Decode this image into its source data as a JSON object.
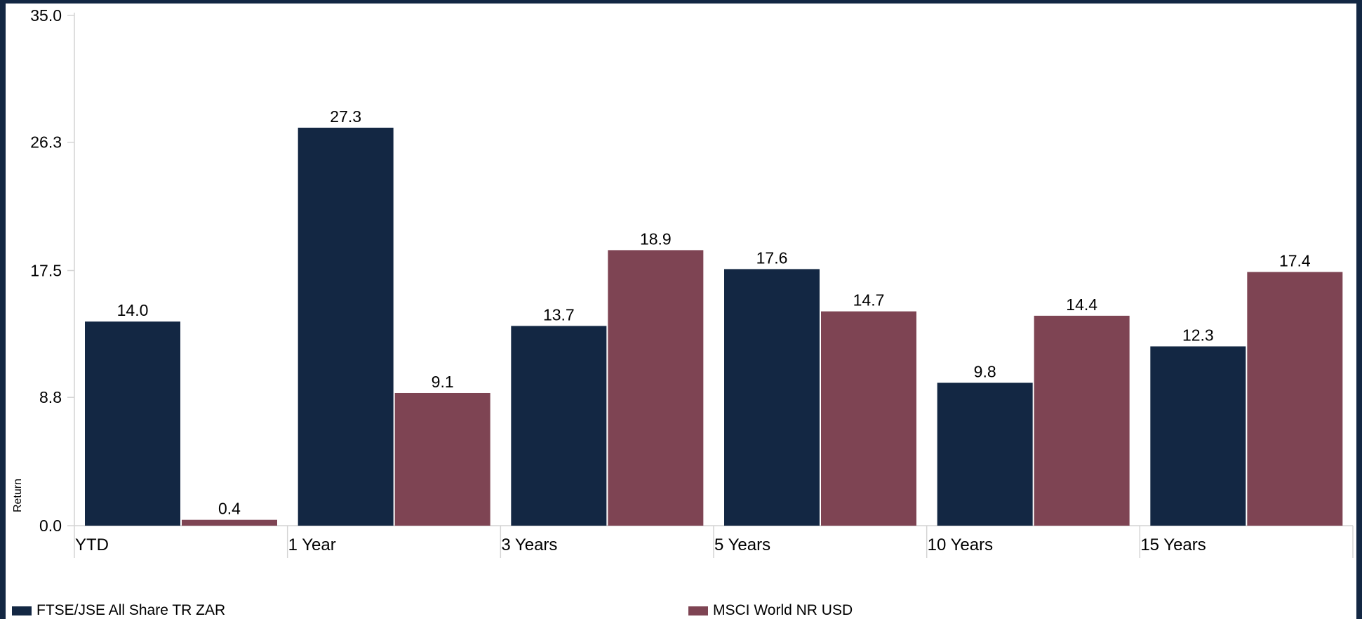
{
  "chart_data": {
    "type": "bar",
    "categories": [
      "YTD",
      "1 Year",
      "3 Years",
      "5 Years",
      "10 Years",
      "15 Years"
    ],
    "series": [
      {
        "name": "FTSE/JSE All Share TR ZAR",
        "color": "#132743",
        "values": [
          14.0,
          27.3,
          13.7,
          17.6,
          9.8,
          12.3
        ],
        "labels": [
          "14.0",
          "27.3",
          "13.7",
          "17.6",
          "9.8",
          "12.3"
        ]
      },
      {
        "name": "MSCI World NR USD",
        "color": "#7e4453",
        "values": [
          0.4,
          9.1,
          18.9,
          14.7,
          14.4,
          17.4
        ],
        "labels": [
          "0.4",
          "9.1",
          "18.9",
          "14.7",
          "14.4",
          "17.4"
        ]
      }
    ],
    "ylabel": "Return",
    "xlabel": "",
    "title": "",
    "ylim": [
      0,
      35.0
    ],
    "yticks": [
      0.0,
      8.8,
      17.5,
      26.3,
      35.0
    ],
    "ytick_labels": [
      "0.0",
      "8.8",
      "17.5",
      "26.3",
      "35.0"
    ],
    "grid": false,
    "legend_position": "bottom"
  }
}
